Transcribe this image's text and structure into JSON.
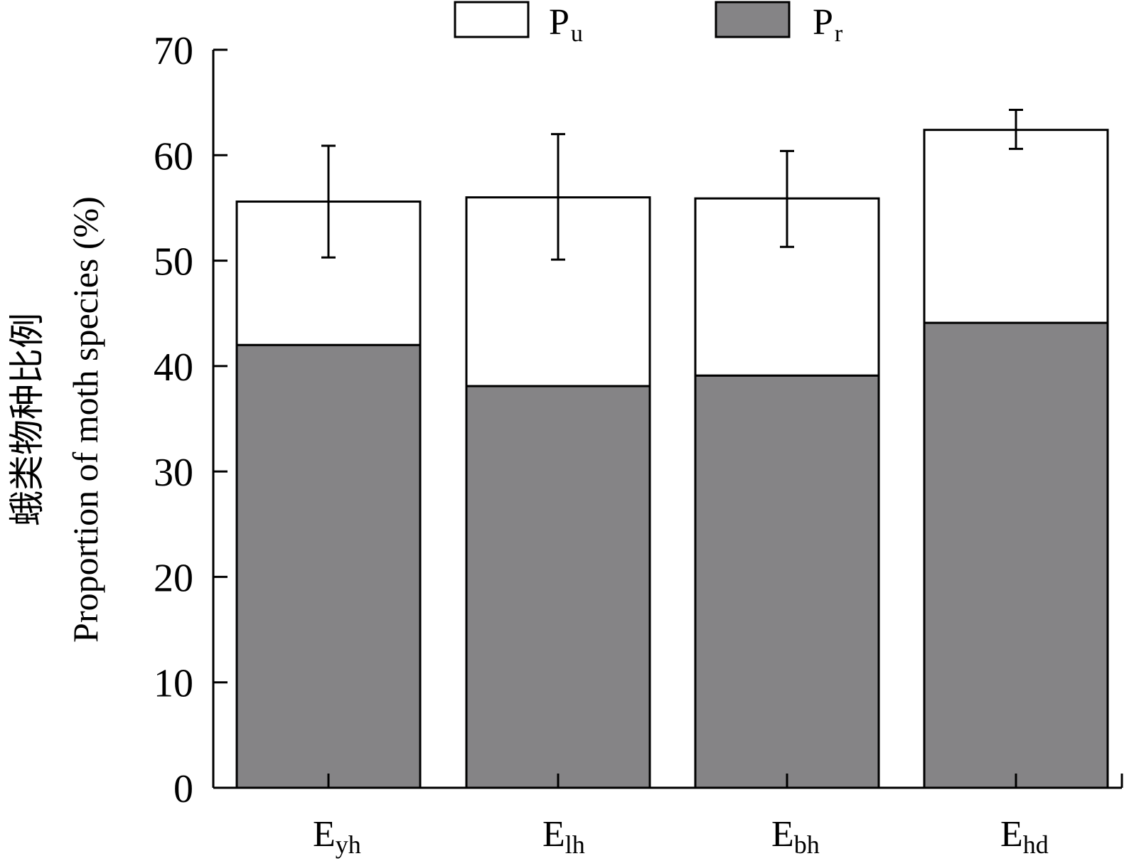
{
  "chart_data": {
    "type": "bar",
    "stacked": true,
    "categories": [
      {
        "main": "E",
        "sub": "yh"
      },
      {
        "main": "E",
        "sub": "lh"
      },
      {
        "main": "E",
        "sub": "bh"
      },
      {
        "main": "E",
        "sub": "hd"
      }
    ],
    "series": [
      {
        "name_main": "P",
        "name_sub": "r",
        "color": "#858486",
        "values": [
          42,
          38.1,
          39.1,
          44.1
        ]
      },
      {
        "name_main": "P",
        "name_sub": "u",
        "color": "#ffffff",
        "values": [
          13.6,
          17.9,
          16.8,
          18.3
        ]
      }
    ],
    "error_bars": [
      {
        "center": 55.6,
        "low": 50.3,
        "high": 60.9
      },
      {
        "center": 56.0,
        "low": 50.1,
        "high": 62.0
      },
      {
        "center": 55.9,
        "low": 51.3,
        "high": 60.4
      },
      {
        "center": 62.4,
        "low": 60.6,
        "high": 64.3
      }
    ],
    "ylim": [
      0,
      70
    ],
    "yticks": [
      0,
      10,
      20,
      30,
      40,
      50,
      60,
      70
    ],
    "ylabel_line1": "蛾类物种比例",
    "ylabel_line2": "Proportion of moth species (%)",
    "legend_position": "top",
    "grid": false
  }
}
